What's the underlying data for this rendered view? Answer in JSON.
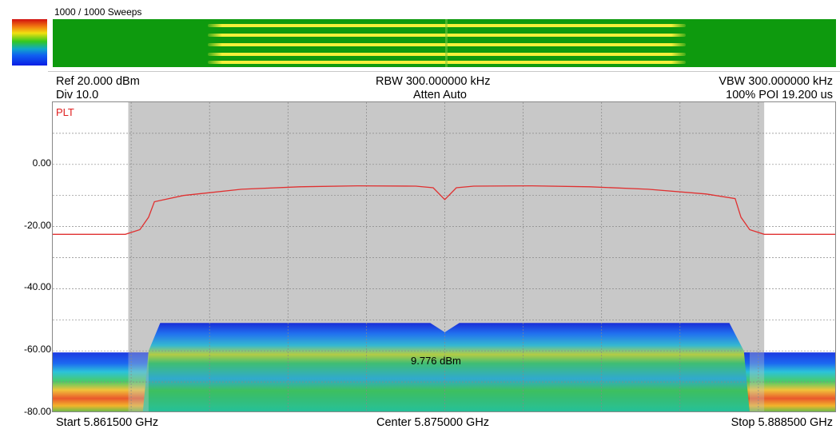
{
  "sweeps": "1000 / 1000 Sweeps",
  "header": {
    "ref": "Ref 20.000 dBm",
    "div": "Div 10.0",
    "rbw": "RBW 300.000000 kHz",
    "atten": "Atten Auto",
    "vbw": "VBW 300.000000 kHz",
    "poi": "100% POI 19.200 us"
  },
  "trace_label": "PLT",
  "marker_text": "9.776 dBm",
  "footer": {
    "start": "Start 5.861500 GHz",
    "center": "Center 5.875000 GHz",
    "stop": "Stop 5.888500 GHz"
  },
  "colors": {
    "trace": "#e03030",
    "shade": "#c8c8c8",
    "waterfall_bg": "#0e9a0e"
  },
  "chart_data": {
    "type": "line",
    "xlim": [
      5.8615,
      5.8885
    ],
    "ylim": [
      -80,
      20
    ],
    "y_tick_labels": [
      "0.00",
      "-20.00",
      "-40.00",
      "-60.00",
      "-80.00"
    ],
    "y_ticks": [
      0,
      -20,
      -40,
      -60,
      -80
    ],
    "highlight_band": [
      5.8641,
      5.886
    ],
    "series": [
      {
        "x": [
          5.8615,
          5.864,
          5.8645,
          5.8648,
          5.865,
          5.866,
          5.868,
          5.87,
          5.872,
          5.874,
          5.8746,
          5.875,
          5.8754,
          5.876,
          5.878,
          5.88,
          5.882,
          5.884,
          5.885,
          5.8852,
          5.8855,
          5.886,
          5.8885
        ],
        "y": [
          -22.5,
          -22.5,
          -21.0,
          -17.0,
          -12.0,
          -10.0,
          -8.0,
          -7.2,
          -6.9,
          -7.0,
          -7.5,
          -11.3,
          -7.5,
          -7.0,
          -6.9,
          -7.2,
          -8.0,
          -9.5,
          -11.0,
          -17.0,
          -21.0,
          -22.5,
          -22.5
        ]
      }
    ]
  }
}
